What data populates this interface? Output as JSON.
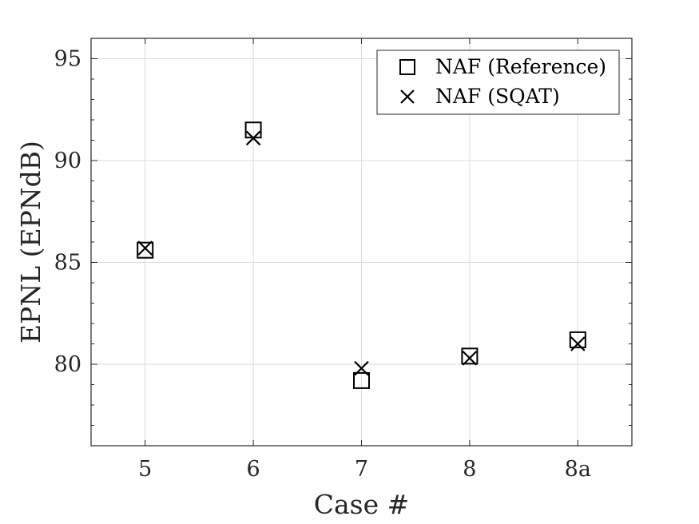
{
  "chart_data": {
    "type": "scatter",
    "title": "",
    "xlabel": "Case #",
    "ylabel": "EPNL (EPNdB)",
    "categories": [
      "5",
      "6",
      "7",
      "8",
      "8a"
    ],
    "ylim": [
      76,
      96
    ],
    "yticks": [
      "80",
      "85",
      "90",
      "95"
    ],
    "grid": true,
    "legend_position": "top-right",
    "series": [
      {
        "name": "NAF (Reference)",
        "marker": "square",
        "color": "#000000",
        "values": [
          85.6,
          91.5,
          79.2,
          80.4,
          81.2
        ]
      },
      {
        "name": "NAF (SQAT)",
        "marker": "x",
        "color": "#000000",
        "values": [
          85.7,
          91.1,
          79.8,
          80.3,
          81.0
        ]
      }
    ]
  }
}
